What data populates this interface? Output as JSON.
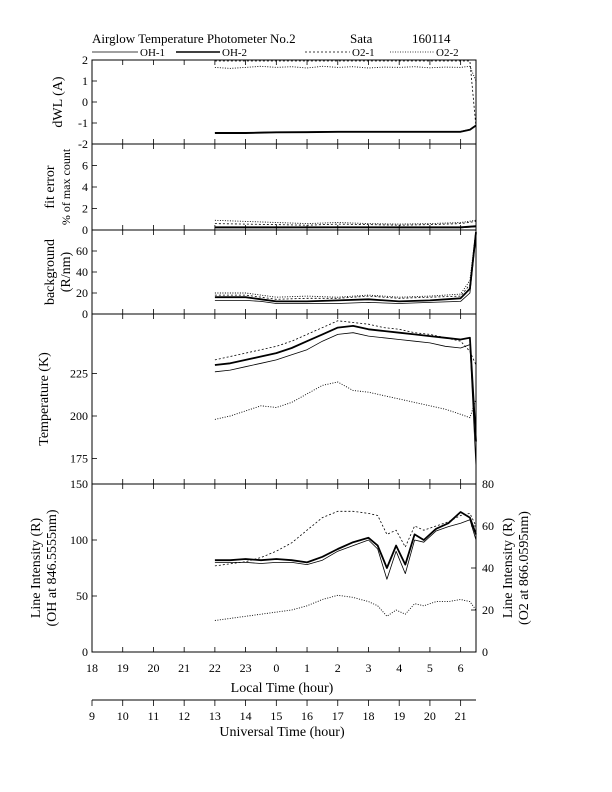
{
  "header": {
    "title": "Airglow Temperature Photometer No.2",
    "site": "Sata",
    "date": "160114"
  },
  "legend": [
    "OH-1",
    "OH-2",
    "O2-1",
    "O2-2"
  ],
  "chart_data": [
    {
      "type": "line",
      "panel": "dWL",
      "ylabel": "dWL (A)",
      "ylim": [
        -2,
        2
      ],
      "yticks": [
        "2",
        "1",
        "0",
        "-1",
        "-2"
      ],
      "x_units": "local hour (18-30)",
      "series": [
        {
          "name": "OH-1",
          "x": [
            22.0,
            23.0,
            24.0,
            25.0,
            26.0,
            27.0,
            28.0,
            29.0,
            30.0,
            30.3,
            30.5
          ],
          "y": [
            -1.45,
            -1.45,
            -1.42,
            -1.42,
            -1.4,
            -1.4,
            -1.4,
            -1.4,
            -1.4,
            -1.3,
            -1.1
          ]
        },
        {
          "name": "OH-2",
          "x": [
            22.0,
            23.0,
            24.0,
            25.0,
            26.0,
            27.0,
            28.0,
            29.0,
            30.0,
            30.3,
            30.5
          ],
          "y": [
            -1.48,
            -1.48,
            -1.45,
            -1.44,
            -1.42,
            -1.42,
            -1.42,
            -1.42,
            -1.42,
            -1.32,
            -1.12
          ]
        },
        {
          "name": "O2-1",
          "x": [
            22.0,
            23.0,
            24.0,
            25.0,
            26.0,
            27.0,
            28.0,
            29.0,
            30.0,
            30.3,
            30.5
          ],
          "y": [
            1.95,
            1.95,
            1.95,
            1.95,
            1.95,
            1.95,
            1.95,
            1.95,
            1.95,
            1.95,
            -1.2
          ]
        },
        {
          "name": "O2-2",
          "x": [
            22.0,
            22.5,
            23.0,
            23.5,
            24.0,
            24.5,
            25.0,
            25.5,
            26.0,
            26.5,
            27.0,
            27.5,
            28.0,
            28.5,
            29.0,
            29.5,
            30.0,
            30.3,
            30.5
          ],
          "y": [
            1.65,
            1.6,
            1.65,
            1.7,
            1.65,
            1.68,
            1.62,
            1.7,
            1.65,
            1.68,
            1.62,
            1.66,
            1.65,
            1.68,
            1.63,
            1.66,
            1.65,
            1.7,
            1.0
          ]
        }
      ]
    },
    {
      "type": "line",
      "panel": "fit error",
      "ylabel": "fit error",
      "ylabel2": "% of max count",
      "ylim": [
        0,
        8
      ],
      "yticks": [
        "6",
        "4",
        "2",
        "0"
      ],
      "x_units": "local hour (18-30)",
      "series": [
        {
          "name": "OH-1",
          "x": [
            22.0,
            24.0,
            26.0,
            28.0,
            30.0,
            30.5
          ],
          "y": [
            0.2,
            0.2,
            0.22,
            0.2,
            0.2,
            0.3
          ]
        },
        {
          "name": "OH-2",
          "x": [
            22.0,
            24.0,
            26.0,
            28.0,
            30.0,
            30.5
          ],
          "y": [
            0.25,
            0.25,
            0.25,
            0.25,
            0.25,
            0.35
          ]
        },
        {
          "name": "O2-1",
          "x": [
            22.0,
            23.0,
            24.0,
            25.0,
            26.0,
            27.0,
            28.0,
            29.0,
            30.0,
            30.5
          ],
          "y": [
            0.6,
            0.55,
            0.5,
            0.45,
            0.55,
            0.5,
            0.45,
            0.5,
            0.6,
            0.8
          ]
        },
        {
          "name": "O2-2",
          "x": [
            22.0,
            23.0,
            24.0,
            25.0,
            26.0,
            27.0,
            28.0,
            29.0,
            30.0,
            30.5
          ],
          "y": [
            0.9,
            0.8,
            0.7,
            0.6,
            0.7,
            0.6,
            0.55,
            0.6,
            0.7,
            0.9
          ]
        }
      ]
    },
    {
      "type": "line",
      "panel": "background",
      "ylabel": "background",
      "ylabel2": "(R/nm)",
      "ylim": [
        0,
        80
      ],
      "yticks": [
        "60",
        "40",
        "20",
        "0"
      ],
      "x_units": "local hour (18-30)",
      "series": [
        {
          "name": "OH-1",
          "x": [
            22.0,
            23.0,
            23.5,
            24.0,
            25.0,
            26.0,
            27.0,
            28.0,
            29.0,
            30.0,
            30.3,
            30.5
          ],
          "y": [
            13,
            13,
            12,
            10,
            10,
            10,
            11,
            10,
            11,
            12,
            20,
            75
          ]
        },
        {
          "name": "OH-2",
          "x": [
            22.0,
            23.0,
            23.5,
            24.0,
            25.0,
            26.0,
            27.0,
            28.0,
            29.0,
            30.0,
            30.3,
            30.5
          ],
          "y": [
            16,
            16,
            14,
            12,
            12,
            13,
            14,
            12,
            13,
            15,
            24,
            78
          ]
        },
        {
          "name": "O2-1",
          "x": [
            22.0,
            23.0,
            23.5,
            24.0,
            25.0,
            26.0,
            27.0,
            28.0,
            29.0,
            30.0,
            30.3,
            30.5
          ],
          "y": [
            18,
            18,
            16,
            14,
            15,
            15,
            17,
            15,
            16,
            17,
            28,
            80
          ]
        },
        {
          "name": "O2-2",
          "x": [
            22.0,
            23.0,
            23.5,
            24.0,
            25.0,
            26.0,
            27.0,
            28.0,
            29.0,
            30.0,
            30.3,
            30.5
          ],
          "y": [
            20,
            20,
            18,
            16,
            17,
            16,
            18,
            16,
            17,
            19,
            32,
            80
          ]
        }
      ]
    },
    {
      "type": "line",
      "panel": "temperature",
      "ylabel": "Temperature (K)",
      "ylim": [
        160,
        260
      ],
      "yticks": [
        "225",
        "200",
        "175"
      ],
      "x_units": "local hour (18-30)",
      "series": [
        {
          "name": "OH-1",
          "x": [
            22.0,
            22.5,
            23.0,
            23.5,
            24.0,
            24.5,
            25.0,
            25.5,
            26.0,
            26.5,
            27.0,
            27.5,
            28.0,
            28.5,
            29.0,
            29.5,
            30.0,
            30.3,
            30.5
          ],
          "y": [
            226,
            227,
            229,
            231,
            233,
            236,
            239,
            244,
            248,
            249,
            247,
            246,
            245,
            244,
            243,
            241,
            240,
            242,
            170
          ]
        },
        {
          "name": "OH-2",
          "x": [
            22.0,
            22.5,
            23.0,
            23.5,
            24.0,
            24.5,
            25.0,
            25.5,
            26.0,
            26.5,
            27.0,
            27.5,
            28.0,
            28.5,
            29.0,
            29.5,
            30.0,
            30.3,
            30.5
          ],
          "y": [
            230,
            231,
            233,
            235,
            237,
            240,
            244,
            248,
            252,
            253,
            251,
            250,
            249,
            248,
            247,
            246,
            245,
            246,
            185
          ]
        },
        {
          "name": "O2-1",
          "x": [
            22.0,
            22.5,
            23.0,
            23.5,
            24.0,
            24.5,
            25.0,
            25.5,
            26.0,
            26.5,
            27.0,
            27.5,
            28.0,
            28.5,
            29.0,
            29.5,
            30.0,
            30.3,
            30.5
          ],
          "y": [
            233,
            235,
            237,
            239,
            241,
            244,
            248,
            252,
            256,
            255,
            254,
            252,
            251,
            249,
            248,
            246,
            244,
            238,
            230
          ]
        },
        {
          "name": "O2-2",
          "x": [
            22.0,
            22.5,
            23.0,
            23.5,
            24.0,
            24.5,
            25.0,
            25.5,
            26.0,
            26.5,
            27.0,
            27.5,
            28.0,
            28.5,
            29.0,
            29.5,
            30.0,
            30.3,
            30.5
          ],
          "y": [
            198,
            200,
            203,
            206,
            205,
            208,
            213,
            218,
            220,
            215,
            214,
            212,
            210,
            208,
            206,
            204,
            201,
            199,
            210
          ]
        }
      ]
    },
    {
      "type": "line",
      "panel": "line intensity",
      "ylabel": "Line Intensity (R)",
      "ylabel2": "(OH at 846.5555nm)",
      "ylabel_right": "Line Intensity (R)",
      "ylabel_right2": "(O2 at 866.0595nm)",
      "ylim": [
        0,
        150
      ],
      "ylim_right": [
        0,
        80
      ],
      "yticks": [
        "150",
        "100",
        "50",
        "0"
      ],
      "yticks_right": [
        "80",
        "60",
        "40",
        "20",
        "0"
      ],
      "x_units": "local hour (18-30)",
      "series": [
        {
          "name": "OH-1",
          "x": [
            22.0,
            22.5,
            23.0,
            23.5,
            24.0,
            24.5,
            25.0,
            25.5,
            26.0,
            26.5,
            27.0,
            27.3,
            27.6,
            27.9,
            28.2,
            28.5,
            28.8,
            29.2,
            29.6,
            30.0,
            30.3,
            30.5
          ],
          "y": [
            80,
            80,
            80,
            79,
            80,
            80,
            78,
            82,
            90,
            95,
            100,
            92,
            65,
            90,
            70,
            100,
            98,
            108,
            112,
            115,
            118,
            100
          ]
        },
        {
          "name": "OH-2",
          "x": [
            22.0,
            22.5,
            23.0,
            23.5,
            24.0,
            24.5,
            25.0,
            25.5,
            26.0,
            26.5,
            27.0,
            27.3,
            27.6,
            27.9,
            28.2,
            28.5,
            28.8,
            29.2,
            29.6,
            30.0,
            30.3,
            30.5
          ],
          "y": [
            82,
            82,
            83,
            82,
            83,
            82,
            80,
            85,
            92,
            98,
            102,
            95,
            75,
            95,
            78,
            105,
            100,
            110,
            115,
            125,
            120,
            105
          ]
        },
        {
          "name": "O2-1",
          "x": [
            22.0,
            22.5,
            23.0,
            23.5,
            24.0,
            24.5,
            25.0,
            25.5,
            26.0,
            26.5,
            27.0,
            27.3,
            27.6,
            27.9,
            28.2,
            28.5,
            28.8,
            29.2,
            29.6,
            30.0,
            30.3,
            30.5
          ],
          "y": [
            41,
            42,
            43,
            45,
            48,
            52,
            58,
            64,
            67,
            67,
            66,
            65,
            56,
            58,
            50,
            60,
            58,
            60,
            62,
            65,
            66,
            60
          ]
        },
        {
          "name": "O2-2",
          "x": [
            22.0,
            22.5,
            23.0,
            23.5,
            24.0,
            24.5,
            25.0,
            25.5,
            26.0,
            26.5,
            27.0,
            27.3,
            27.6,
            27.9,
            28.2,
            28.5,
            28.8,
            29.2,
            29.6,
            30.0,
            30.3,
            30.5
          ],
          "y": [
            15,
            16,
            17,
            18,
            19,
            20,
            22,
            25,
            27,
            26,
            24,
            22,
            17,
            20,
            18,
            23,
            22,
            24,
            24,
            25,
            24,
            20
          ]
        }
      ]
    }
  ],
  "x_axis_local": {
    "label": "Local Time (hour)",
    "ticks": [
      "18",
      "19",
      "20",
      "21",
      "22",
      "23",
      "0",
      "1",
      "2",
      "3",
      "4",
      "5",
      "6"
    ]
  },
  "x_axis_universal": {
    "label": "Universal Time (hour)",
    "ticks": [
      "9",
      "10",
      "11",
      "12",
      "13",
      "14",
      "15",
      "16",
      "17",
      "18",
      "19",
      "20",
      "21"
    ]
  }
}
